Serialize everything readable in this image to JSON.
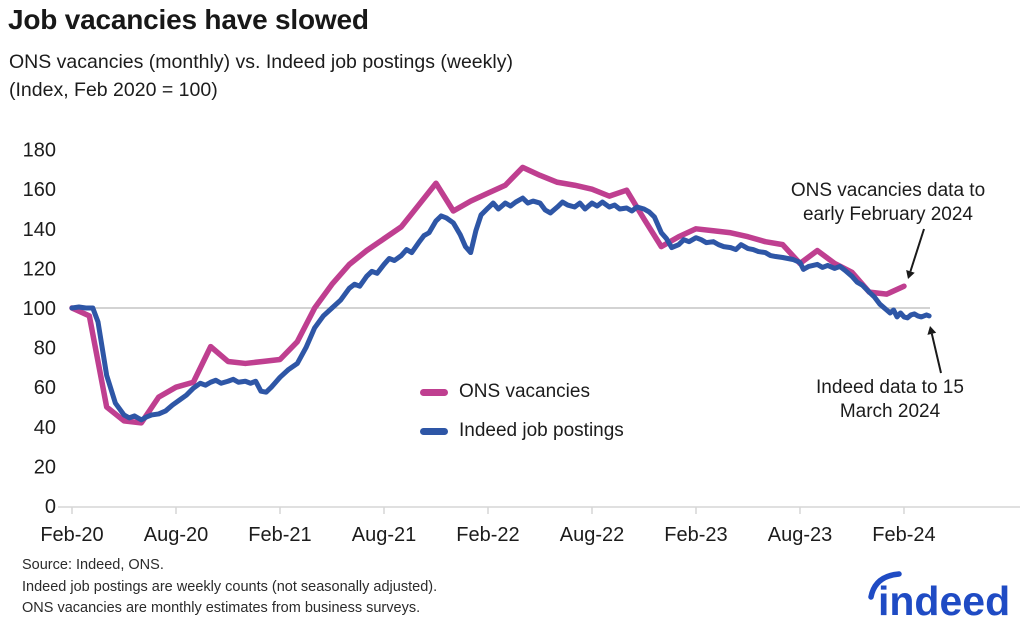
{
  "header": {
    "title": "Job vacancies have slowed",
    "subtitle1": "ONS vacancies (monthly) vs. Indeed job postings (weekly)",
    "subtitle2": "(Index, Feb 2020 = 100)"
  },
  "chart_data": {
    "type": "line",
    "title": "Job vacancies have slowed",
    "subtitle": "ONS vacancies (monthly) vs. Indeed job postings (weekly)",
    "index_note": "Index, Feb 2020 = 100",
    "x_unit": "months since Feb 2020",
    "x_tick_labels": [
      "Feb-20",
      "Aug-20",
      "Feb-21",
      "Aug-21",
      "Feb-22",
      "Aug-22",
      "Feb-23",
      "Aug-23",
      "Feb-24"
    ],
    "x_tick_months": [
      0,
      6,
      12,
      18,
      24,
      30,
      36,
      42,
      48
    ],
    "y_ticks": [
      0,
      20,
      40,
      60,
      80,
      100,
      120,
      140,
      160,
      180
    ],
    "ylim": [
      0,
      180
    ],
    "reference_line": 100,
    "grid": "single horizontal line at 100 only",
    "legend_position": "inside lower-center",
    "series": [
      {
        "name": "ONS vacancies",
        "color": "#bf3f90",
        "frequency": "monthly",
        "start_month": "Feb-2020",
        "end_month": "Feb-2024",
        "values": [
          100,
          96,
          50,
          43,
          42,
          55,
          60,
          62.5,
          80.5,
          73,
          72,
          73,
          74,
          83,
          100,
          112,
          122,
          129,
          135,
          141,
          152,
          163,
          149,
          154,
          158,
          162,
          171,
          167,
          163.5,
          162,
          160,
          156.5,
          159.5,
          145,
          131,
          136,
          140,
          139,
          138,
          136,
          133.5,
          132,
          122.5,
          129,
          122.5,
          118,
          108,
          107,
          111
        ]
      },
      {
        "name": "Indeed job postings",
        "color": "#2e56a6",
        "frequency": "weekly",
        "start_month": "Feb-2020",
        "end_month": "15 Mar 2024",
        "points": [
          [
            0,
            100
          ],
          [
            0.4,
            100.5
          ],
          [
            0.8,
            100
          ],
          [
            1.2,
            100
          ],
          [
            1.5,
            93
          ],
          [
            2,
            66
          ],
          [
            2.5,
            52
          ],
          [
            3,
            46
          ],
          [
            3.3,
            44.5
          ],
          [
            3.6,
            45.5
          ],
          [
            4,
            43.5
          ],
          [
            4.3,
            45
          ],
          [
            4.6,
            46
          ],
          [
            5,
            46.5
          ],
          [
            5.4,
            48
          ],
          [
            5.8,
            51
          ],
          [
            6.2,
            53.5
          ],
          [
            6.6,
            56
          ],
          [
            7,
            59.5
          ],
          [
            7.4,
            62
          ],
          [
            7.7,
            61
          ],
          [
            8,
            62.5
          ],
          [
            8.3,
            63.5
          ],
          [
            8.6,
            62
          ],
          [
            9,
            63
          ],
          [
            9.3,
            64
          ],
          [
            9.6,
            62.5
          ],
          [
            10,
            63
          ],
          [
            10.3,
            62
          ],
          [
            10.6,
            63
          ],
          [
            10.9,
            58
          ],
          [
            11.2,
            57.5
          ],
          [
            11.5,
            60
          ],
          [
            12,
            65
          ],
          [
            12.5,
            69
          ],
          [
            13,
            72
          ],
          [
            13.5,
            80
          ],
          [
            14,
            90
          ],
          [
            14.5,
            96
          ],
          [
            15,
            100
          ],
          [
            15.5,
            104
          ],
          [
            16,
            110
          ],
          [
            16.3,
            112
          ],
          [
            16.6,
            111
          ],
          [
            17,
            116
          ],
          [
            17.3,
            118.5
          ],
          [
            17.6,
            117.5
          ],
          [
            18,
            122
          ],
          [
            18.3,
            125
          ],
          [
            18.6,
            124
          ],
          [
            19,
            126.5
          ],
          [
            19.3,
            129.5
          ],
          [
            19.6,
            128
          ],
          [
            20,
            133
          ],
          [
            20.3,
            136.5
          ],
          [
            20.6,
            138
          ],
          [
            21,
            144
          ],
          [
            21.3,
            146.5
          ],
          [
            21.6,
            145.5
          ],
          [
            22,
            143
          ],
          [
            22.4,
            137
          ],
          [
            22.7,
            131
          ],
          [
            23,
            128
          ],
          [
            23.3,
            139
          ],
          [
            23.6,
            147
          ],
          [
            24,
            150.5
          ],
          [
            24.3,
            153
          ],
          [
            24.6,
            150
          ],
          [
            25,
            153
          ],
          [
            25.3,
            151.5
          ],
          [
            25.6,
            153.5
          ],
          [
            26,
            155.5
          ],
          [
            26.3,
            153
          ],
          [
            26.6,
            154
          ],
          [
            27,
            153
          ],
          [
            27.3,
            149.5
          ],
          [
            27.6,
            148
          ],
          [
            28,
            151
          ],
          [
            28.3,
            153.5
          ],
          [
            28.6,
            152
          ],
          [
            29,
            151
          ],
          [
            29.3,
            153
          ],
          [
            29.6,
            150
          ],
          [
            30,
            153
          ],
          [
            30.3,
            151.5
          ],
          [
            30.6,
            153.5
          ],
          [
            31,
            151
          ],
          [
            31.3,
            152
          ],
          [
            31.6,
            150
          ],
          [
            32,
            150.5
          ],
          [
            32.3,
            149
          ],
          [
            32.6,
            151
          ],
          [
            33,
            150
          ],
          [
            33.3,
            148.5
          ],
          [
            33.6,
            146
          ],
          [
            34,
            138
          ],
          [
            34.3,
            135
          ],
          [
            34.6,
            130.5
          ],
          [
            35,
            132
          ],
          [
            35.3,
            134.5
          ],
          [
            35.6,
            133.5
          ],
          [
            36,
            135.5
          ],
          [
            36.3,
            134.5
          ],
          [
            36.6,
            133
          ],
          [
            37,
            133.5
          ],
          [
            37.3,
            132
          ],
          [
            37.6,
            131
          ],
          [
            38,
            130.5
          ],
          [
            38.3,
            129.5
          ],
          [
            38.6,
            132
          ],
          [
            39,
            130
          ],
          [
            39.3,
            129.5
          ],
          [
            39.6,
            128.5
          ],
          [
            40,
            128
          ],
          [
            40.3,
            126.5
          ],
          [
            40.6,
            126
          ],
          [
            41,
            125.5
          ],
          [
            41.3,
            125
          ],
          [
            41.6,
            124.5
          ],
          [
            42,
            123
          ],
          [
            42.2,
            119.5
          ],
          [
            42.5,
            121
          ],
          [
            43,
            122
          ],
          [
            43.3,
            120.5
          ],
          [
            43.6,
            121.5
          ],
          [
            44,
            120
          ],
          [
            44.3,
            121
          ],
          [
            44.6,
            119
          ],
          [
            45,
            116
          ],
          [
            45.3,
            113
          ],
          [
            45.6,
            111.5
          ],
          [
            46,
            108
          ],
          [
            46.3,
            105.5
          ],
          [
            46.6,
            102
          ],
          [
            47,
            99
          ],
          [
            47.2,
            97.5
          ],
          [
            47.4,
            99
          ],
          [
            47.6,
            95.5
          ],
          [
            47.8,
            97.5
          ],
          [
            48,
            95.5
          ],
          [
            48.2,
            95
          ],
          [
            48.4,
            96.5
          ],
          [
            48.6,
            97
          ],
          [
            48.8,
            96
          ],
          [
            49,
            95.5
          ],
          [
            49.3,
            96.5
          ],
          [
            49.45,
            96
          ]
        ]
      }
    ],
    "annotations": [
      {
        "line1": "ONS vacancies data to",
        "line2": "early February 2024",
        "arrow": {
          "from": [
            924,
            229
          ],
          "to": [
            908,
            279
          ]
        }
      },
      {
        "line1": "Indeed data to 15",
        "line2": "March 2024",
        "arrow": {
          "from": [
            941,
            373
          ],
          "to": [
            930,
            326
          ]
        }
      }
    ]
  },
  "footer": {
    "source": "Source: Indeed, ONS.",
    "note1": "Indeed job postings are weekly counts (not seasonally adjusted).",
    "note2": "ONS vacancies are monthly estimates from business surveys.",
    "logo_text": "indeed"
  },
  "colors": {
    "ons_pink": "#bf3f90",
    "indeed_blue": "#2e56a6",
    "text_dark": "#1c1c1c",
    "gridline": "#b9b9b9",
    "axis_line": "#d6d6d6",
    "arrow": "#1a1a1a",
    "logo_blue": "#1f4bc4"
  }
}
